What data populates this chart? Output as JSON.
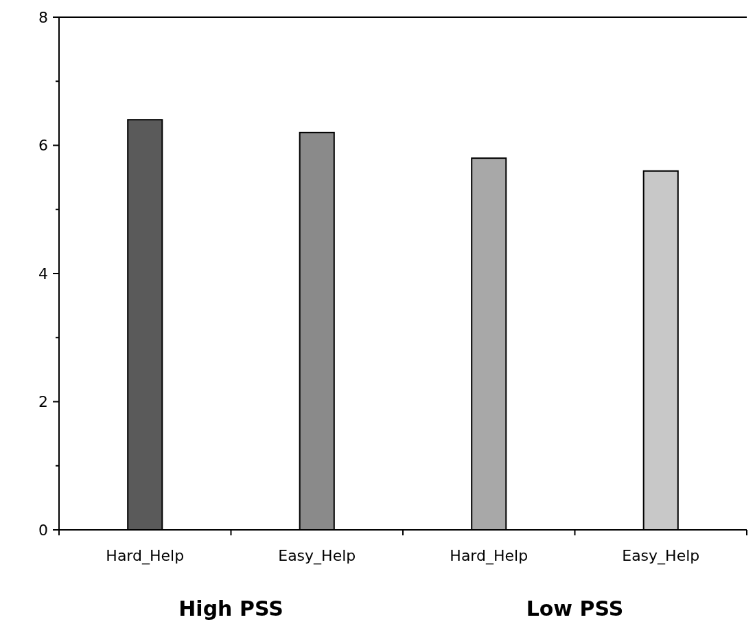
{
  "chart_data": {
    "type": "bar",
    "categories": [
      "Hard_Help",
      "Easy_Help",
      "Hard_Help",
      "Easy_Help"
    ],
    "values": [
      6.4,
      6.2,
      5.8,
      5.6
    ],
    "colors": [
      "#5a5a5a",
      "#8a8a8a",
      "#a8a8a8",
      "#c8c8c8"
    ],
    "ylim": [
      0,
      8
    ],
    "yticks": [
      0,
      {
        "value": 1,
        "label": null
      },
      2,
      {
        "value": 3,
        "label": null
      },
      4,
      {
        "value": 5,
        "label": null
      },
      6,
      {
        "value": 7,
        "label": null
      },
      8
    ],
    "annotations": [
      "High PSS",
      "Low PSS"
    ],
    "grid": false
  }
}
